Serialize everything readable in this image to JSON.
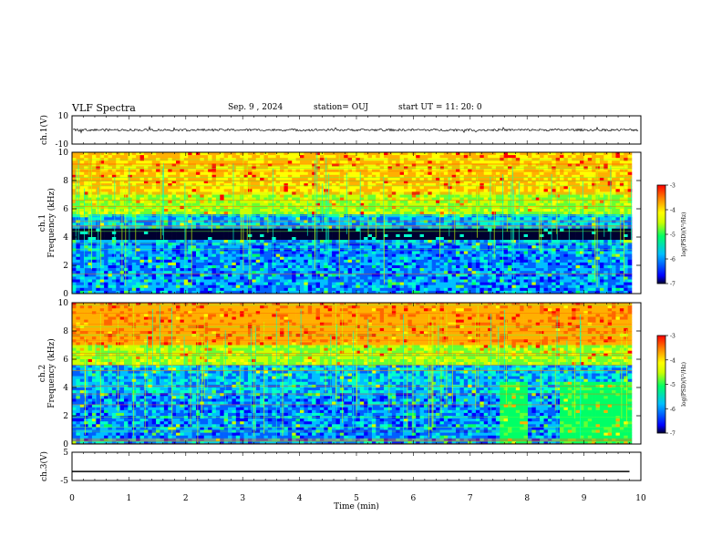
{
  "header": {
    "title": "VLF Spectra",
    "date": "Sep. 9 , 2024",
    "station": "station= OUJ",
    "start": "start UT =  11: 20: 0"
  },
  "colors": {
    "background": "#ffffff",
    "axes": "#000000",
    "colormap": [
      "#0000ff",
      "#00bfff",
      "#00ff66",
      "#ccff00",
      "#ffff00",
      "#ff8800",
      "#ff0000"
    ],
    "colormap_low": "#000030"
  },
  "chart_data": [
    {
      "type": "line",
      "panel": "ch1-waveform",
      "ylabel": "ch.1(V)",
      "ylim": [
        -10,
        10
      ],
      "yticks": [
        "10",
        "-10"
      ],
      "xlim": [
        0,
        10
      ],
      "description_level": "noisy waveform around 0 V, spikes up to about ±2 V"
    },
    {
      "type": "heatmap",
      "panel": "ch1-spectrogram",
      "ylabel_line1": "ch.1",
      "ylabel_line2": "Frequency (kHz)",
      "ylim": [
        0,
        10
      ],
      "yticks": [
        "0",
        "2",
        "4",
        "6",
        "8",
        "10"
      ],
      "xlim": [
        0,
        10
      ],
      "colorbar": {
        "label": "log(PSD)(V²/Hz)",
        "range": [
          -7,
          -3
        ],
        "ticks": [
          "-3",
          "-4",
          "-5",
          "-6",
          "-7"
        ]
      }
    },
    {
      "type": "heatmap",
      "panel": "ch2-spectrogram",
      "ylabel_line1": "ch.2",
      "ylabel_line2": "Frequency (kHz)",
      "ylim": [
        0,
        10
      ],
      "yticks": [
        "0",
        "2",
        "4",
        "6",
        "8",
        "10"
      ],
      "xlim": [
        0,
        10
      ],
      "colorbar": {
        "label": "log(PSD)(V²/Hz)",
        "range": [
          -7,
          -3
        ],
        "ticks": [
          "-3",
          "-4",
          "-5",
          "-6",
          "-7"
        ]
      }
    },
    {
      "type": "line",
      "panel": "ch3-waveform",
      "ylabel": "ch.3(V)",
      "ylim": [
        -5,
        5
      ],
      "yticks": [
        "5",
        "-5"
      ],
      "xlim": [
        0,
        10
      ],
      "x": [
        0,
        9.8
      ],
      "y": [
        -1.8,
        -1.8
      ]
    }
  ],
  "xaxis": {
    "label": "Time (min)",
    "ticks": [
      "0",
      "1",
      "2",
      "3",
      "4",
      "5",
      "6",
      "7",
      "8",
      "9",
      "10"
    ]
  }
}
